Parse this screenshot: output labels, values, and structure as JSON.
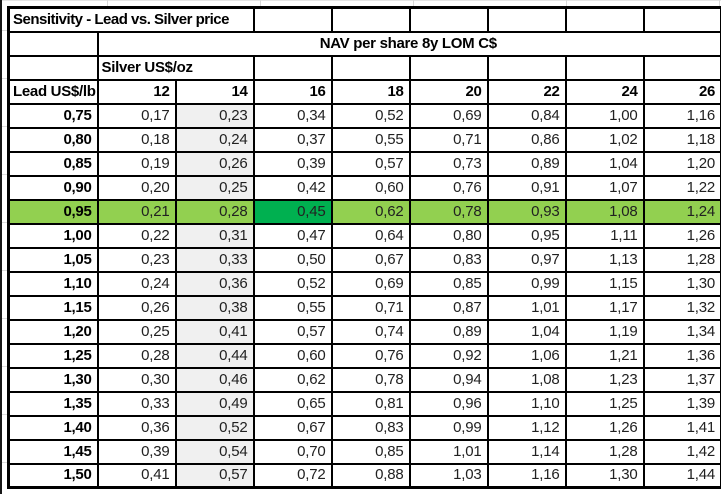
{
  "title": "Sensitivity - Lead vs. Silver price",
  "nav_header": "NAV per share 8y LOM C$",
  "axis": {
    "silver_label": "Silver US$/oz",
    "lead_label": "Lead US$/lb"
  },
  "columns": [
    "12",
    "14",
    "16",
    "18",
    "20",
    "22",
    "24",
    "26"
  ],
  "shaded_column": "14",
  "highlight": {
    "row": "0,95",
    "dark_column": "16"
  },
  "colors": {
    "row_highlight": "#92D050",
    "cell_highlight": "#00B050",
    "shaded_column_bg": "#F0F0F0",
    "border": "#000000"
  },
  "rows": [
    {
      "lead": "0,75",
      "values": [
        "0,17",
        "0,23",
        "0,34",
        "0,52",
        "0,69",
        "0,84",
        "1,00",
        "1,16"
      ]
    },
    {
      "lead": "0,80",
      "values": [
        "0,18",
        "0,24",
        "0,37",
        "0,55",
        "0,71",
        "0,86",
        "1,02",
        "1,18"
      ]
    },
    {
      "lead": "0,85",
      "values": [
        "0,19",
        "0,26",
        "0,39",
        "0,57",
        "0,73",
        "0,89",
        "1,04",
        "1,20"
      ]
    },
    {
      "lead": "0,90",
      "values": [
        "0,20",
        "0,25",
        "0,42",
        "0,60",
        "0,76",
        "0,91",
        "1,07",
        "1,22"
      ]
    },
    {
      "lead": "0,95",
      "values": [
        "0,21",
        "0,28",
        "0,45",
        "0,62",
        "0,78",
        "0,93",
        "1,08",
        "1,24"
      ]
    },
    {
      "lead": "1,00",
      "values": [
        "0,22",
        "0,31",
        "0,47",
        "0,64",
        "0,80",
        "0,95",
        "1,11",
        "1,26"
      ]
    },
    {
      "lead": "1,05",
      "values": [
        "0,23",
        "0,33",
        "0,50",
        "0,67",
        "0,83",
        "0,97",
        "1,13",
        "1,28"
      ]
    },
    {
      "lead": "1,10",
      "values": [
        "0,24",
        "0,36",
        "0,52",
        "0,69",
        "0,85",
        "0,99",
        "1,15",
        "1,30"
      ]
    },
    {
      "lead": "1,15",
      "values": [
        "0,26",
        "0,38",
        "0,55",
        "0,71",
        "0,87",
        "1,01",
        "1,17",
        "1,32"
      ]
    },
    {
      "lead": "1,20",
      "values": [
        "0,25",
        "0,41",
        "0,57",
        "0,74",
        "0,89",
        "1,04",
        "1,19",
        "1,34"
      ]
    },
    {
      "lead": "1,25",
      "values": [
        "0,28",
        "0,44",
        "0,60",
        "0,76",
        "0,92",
        "1,06",
        "1,21",
        "1,36"
      ]
    },
    {
      "lead": "1,30",
      "values": [
        "0,30",
        "0,46",
        "0,62",
        "0,78",
        "0,94",
        "1,08",
        "1,23",
        "1,37"
      ]
    },
    {
      "lead": "1,35",
      "values": [
        "0,33",
        "0,49",
        "0,65",
        "0,81",
        "0,96",
        "1,10",
        "1,25",
        "1,39"
      ]
    },
    {
      "lead": "1,40",
      "values": [
        "0,36",
        "0,52",
        "0,67",
        "0,83",
        "0,99",
        "1,12",
        "1,26",
        "1,41"
      ]
    },
    {
      "lead": "1,45",
      "values": [
        "0,39",
        "0,54",
        "0,70",
        "0,85",
        "1,01",
        "1,14",
        "1,28",
        "1,42"
      ]
    },
    {
      "lead": "1,50",
      "values": [
        "0,41",
        "0,57",
        "0,72",
        "0,88",
        "1,03",
        "1,16",
        "1,30",
        "1,44"
      ]
    }
  ]
}
